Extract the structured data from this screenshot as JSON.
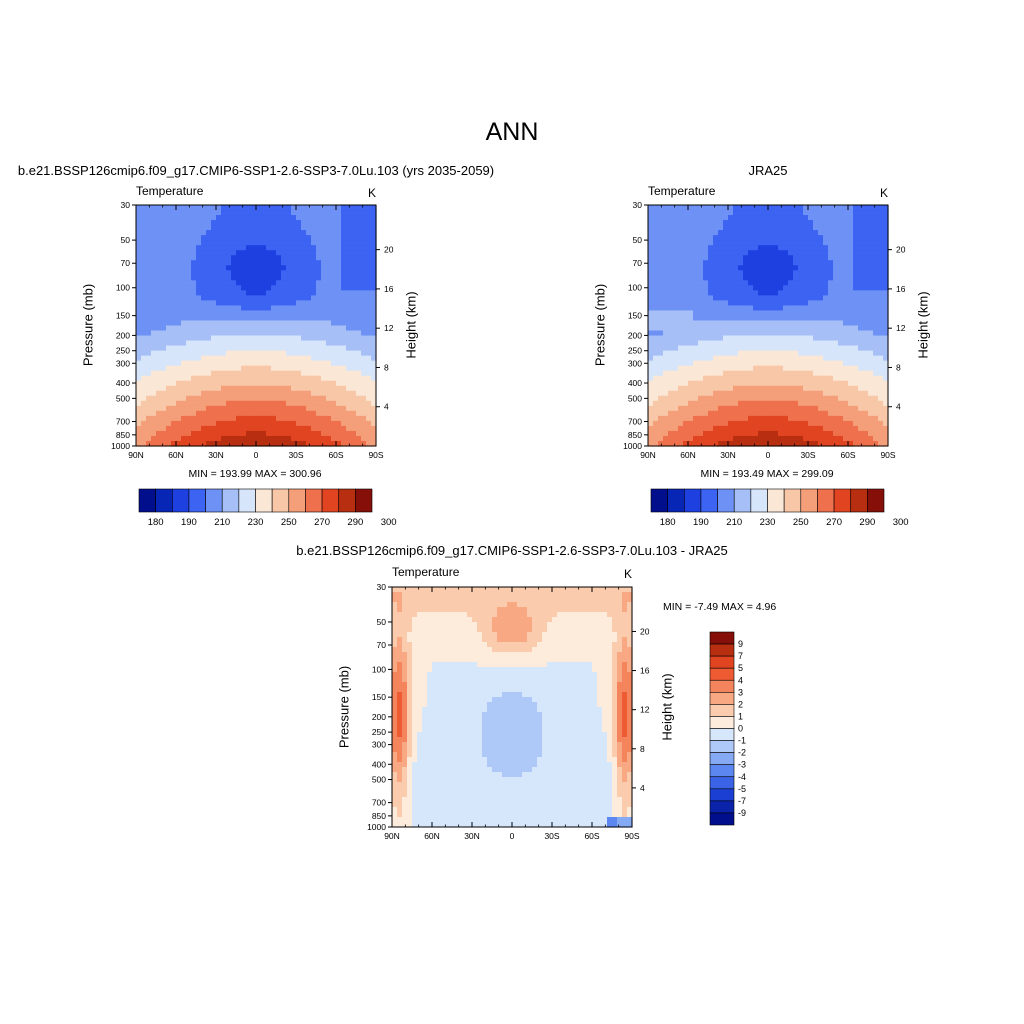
{
  "page": {
    "title": "ANN"
  },
  "panels": [
    {
      "id": "model",
      "title": "b.e21.BSSP126cmip6.f09_g17.CMIP6-SSP1-2.6-SSP3-7.0Lu.103 (yrs 2035-2059)",
      "variable": "Temperature",
      "units": "K",
      "y_left_title": "Pressure (mb)",
      "y_right_title": "Height (km)",
      "minmax": "MIN = 193.99  MAX = 300.96"
    },
    {
      "id": "obs",
      "title": "JRA25",
      "variable": "Temperature",
      "units": "K",
      "y_left_title": "Pressure (mb)",
      "y_right_title": "Height (km)",
      "minmax": "MIN = 193.49  MAX = 299.09"
    },
    {
      "id": "diff",
      "title": "b.e21.BSSP126cmip6.f09_g17.CMIP6-SSP1-2.6-SSP3-7.0Lu.103 - JRA25",
      "variable": "Temperature",
      "units": "K",
      "y_left_title": "Pressure (mb)",
      "y_right_title": "Height (km)",
      "minmax": "MIN =  -7.49  MAX =   4.96"
    }
  ],
  "chart_data": [
    {
      "type": "heatmap",
      "subtype": "filled-contour latitude-pressure cross section",
      "panel": "model",
      "x_tick_labels": [
        "90N",
        "60N",
        "30N",
        "0",
        "30S",
        "60S",
        "90S"
      ],
      "x_values": [
        90,
        60,
        30,
        0,
        -30,
        -60,
        -90
      ],
      "y_tick_labels": [
        "30",
        "50",
        "70",
        "100",
        "150",
        "200",
        "250",
        "300",
        "400",
        "500",
        "700",
        "850",
        "1000"
      ],
      "y_scale": "log",
      "y_range_mb": [
        1000,
        30
      ],
      "right_axis_ticks_km": [
        "4",
        "8",
        "12",
        "16",
        "20"
      ],
      "min": 193.99,
      "max": 300.96,
      "colorbar": {
        "orientation": "horizontal",
        "labels": [
          "180",
          "190",
          "210",
          "230",
          "250",
          "270",
          "290",
          "300"
        ],
        "colors": [
          "#020f8c",
          "#0826b5",
          "#1e40e0",
          "#3c63f2",
          "#6e91f5",
          "#a6c0f7",
          "#d7e5fa",
          "#fbe7d6",
          "#f8c7a7",
          "#f49f79",
          "#ee704d",
          "#e14421",
          "#b72e10",
          "#861009"
        ]
      }
    },
    {
      "type": "heatmap",
      "subtype": "filled-contour latitude-pressure cross section",
      "panel": "obs",
      "x_tick_labels": [
        "90N",
        "60N",
        "30N",
        "0",
        "30S",
        "60S",
        "90S"
      ],
      "x_values": [
        90,
        60,
        30,
        0,
        -30,
        -60,
        -90
      ],
      "y_tick_labels": [
        "30",
        "50",
        "70",
        "100",
        "150",
        "200",
        "250",
        "300",
        "400",
        "500",
        "700",
        "850",
        "1000"
      ],
      "y_scale": "log",
      "y_range_mb": [
        1000,
        30
      ],
      "right_axis_ticks_km": [
        "4",
        "8",
        "12",
        "16",
        "20"
      ],
      "min": 193.49,
      "max": 299.09,
      "colorbar": {
        "orientation": "horizontal",
        "labels": [
          "180",
          "190",
          "210",
          "230",
          "250",
          "270",
          "290",
          "300"
        ],
        "colors": [
          "#020f8c",
          "#0826b5",
          "#1e40e0",
          "#3c63f2",
          "#6e91f5",
          "#a6c0f7",
          "#d7e5fa",
          "#fbe7d6",
          "#f8c7a7",
          "#f49f79",
          "#ee704d",
          "#e14421",
          "#b72e10",
          "#861009"
        ]
      }
    },
    {
      "type": "heatmap",
      "subtype": "filled-contour latitude-pressure cross section (difference)",
      "panel": "diff",
      "x_tick_labels": [
        "90N",
        "60N",
        "30N",
        "0",
        "30S",
        "60S",
        "90S"
      ],
      "x_values": [
        90,
        60,
        30,
        0,
        -30,
        -60,
        -90
      ],
      "y_tick_labels": [
        "30",
        "50",
        "70",
        "100",
        "150",
        "200",
        "250",
        "300",
        "400",
        "500",
        "700",
        "850",
        "1000"
      ],
      "y_scale": "log",
      "y_range_mb": [
        1000,
        30
      ],
      "right_axis_ticks_km": [
        "4",
        "8",
        "12",
        "16",
        "20"
      ],
      "min": -7.49,
      "max": 4.96,
      "colorbar": {
        "orientation": "vertical",
        "labels": [
          "9",
          "7",
          "5",
          "4",
          "3",
          "2",
          "1",
          "0",
          "-1",
          "-2",
          "-3",
          "-4",
          "-5",
          "-7",
          "-9"
        ],
        "colors": [
          "#861009",
          "#b72e10",
          "#e14421",
          "#ee5a32",
          "#f4845c",
          "#f8a882",
          "#fbcbae",
          "#fdebdc",
          "#d6e6fb",
          "#aec8f7",
          "#86a9f4",
          "#5c86f0",
          "#3a63e6",
          "#1c3fd3",
          "#0a23a8",
          "#020f8c"
        ]
      }
    }
  ]
}
